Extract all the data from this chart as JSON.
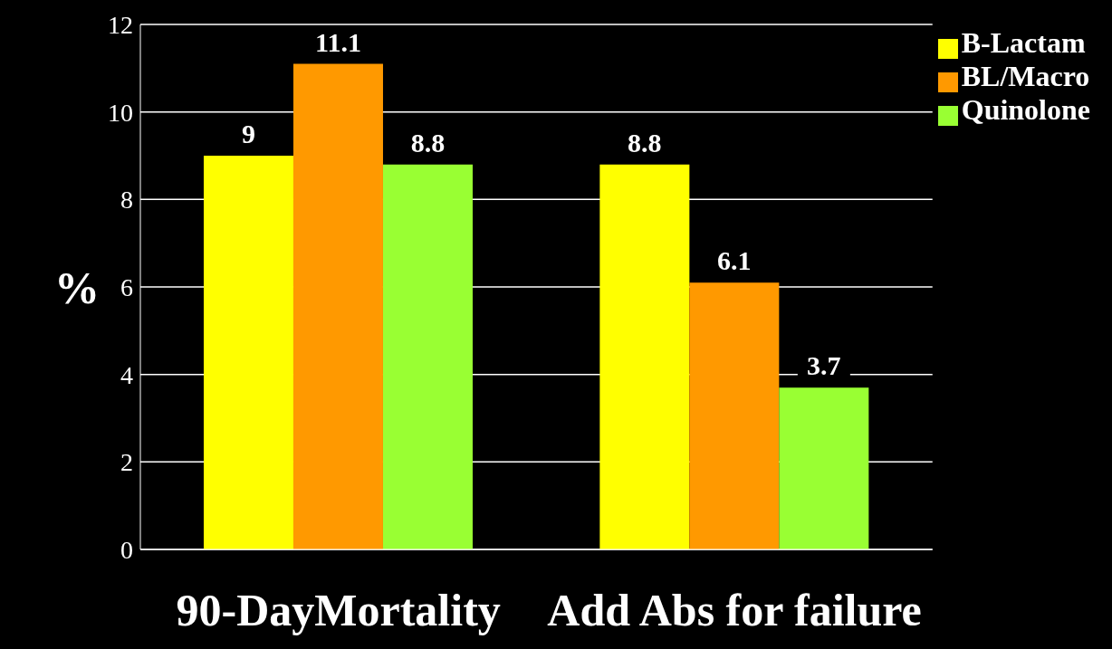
{
  "chart_data": {
    "type": "bar",
    "ylabel": "%",
    "categories": [
      "90-DayMortality",
      "Add Abs for failure"
    ],
    "series": [
      {
        "name": "B-Lactam",
        "color": "#ffff00",
        "values": [
          9,
          8.8
        ]
      },
      {
        "name": "BL/Macro",
        "color": "#ff9900",
        "values": [
          11.1,
          6.1
        ]
      },
      {
        "name": "Quinolone",
        "color": "#99ff33",
        "values": [
          8.8,
          3.7
        ]
      }
    ],
    "ylim": [
      0,
      12
    ],
    "yticks": [
      0,
      2,
      4,
      6,
      8,
      10,
      12
    ],
    "grid": "y",
    "legend": "top right",
    "data_labels": true
  }
}
